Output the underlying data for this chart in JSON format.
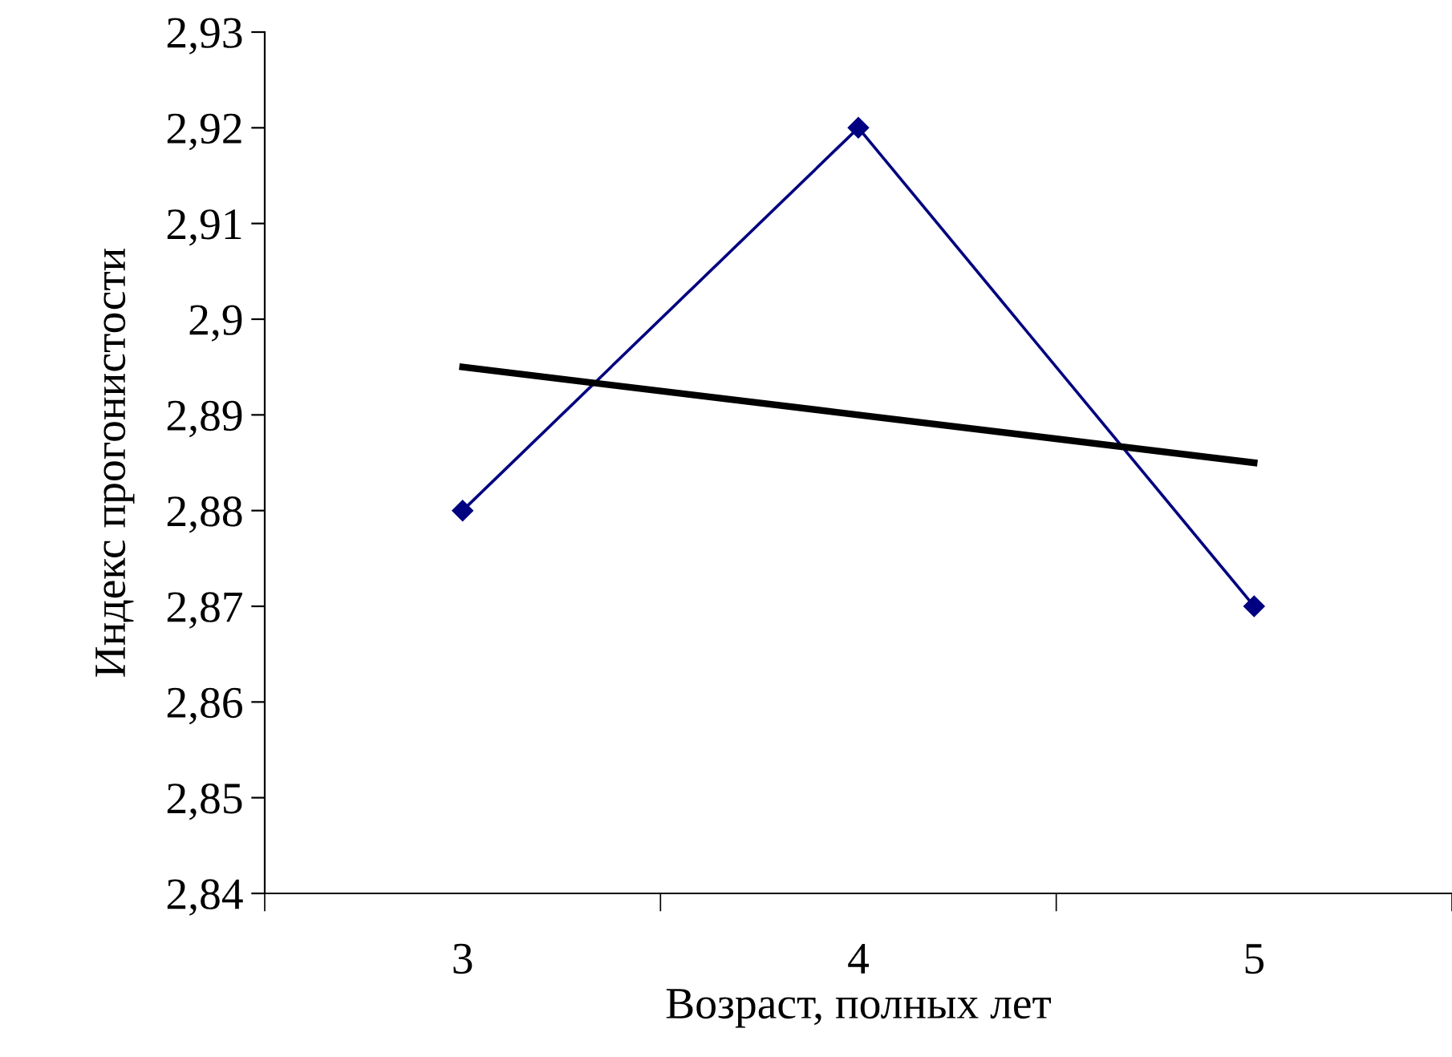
{
  "chart_data": {
    "type": "line",
    "xlabel": "Возраст, полных лет",
    "ylabel": "Индекс прогонистости",
    "categories": [
      "3",
      "4",
      "5"
    ],
    "series": [
      {
        "color": "#000080",
        "values": [
          2.88,
          2.92,
          2.87
        ],
        "marker": "diamond"
      },
      {
        "type": "line",
        "color": "#000000",
        "values": [
          2.895,
          2.89,
          2.885
        ],
        "marker": "none"
      }
    ],
    "ylim": [
      2.84,
      2.93
    ],
    "yticks": [
      {
        "value": 2.84,
        "label": "2,84"
      },
      {
        "value": 2.85,
        "label": "2,85"
      },
      {
        "value": 2.86,
        "label": "2,86"
      },
      {
        "value": 2.87,
        "label": "2,87"
      },
      {
        "value": 2.88,
        "label": "2,88"
      },
      {
        "value": 2.89,
        "label": "2,89"
      },
      {
        "value": 2.9,
        "label": "2,9"
      },
      {
        "value": 2.91,
        "label": "2,91"
      },
      {
        "value": 2.92,
        "label": "2,92"
      },
      {
        "value": 2.93,
        "label": "2,93"
      }
    ],
    "grid": false,
    "legend": false
  }
}
